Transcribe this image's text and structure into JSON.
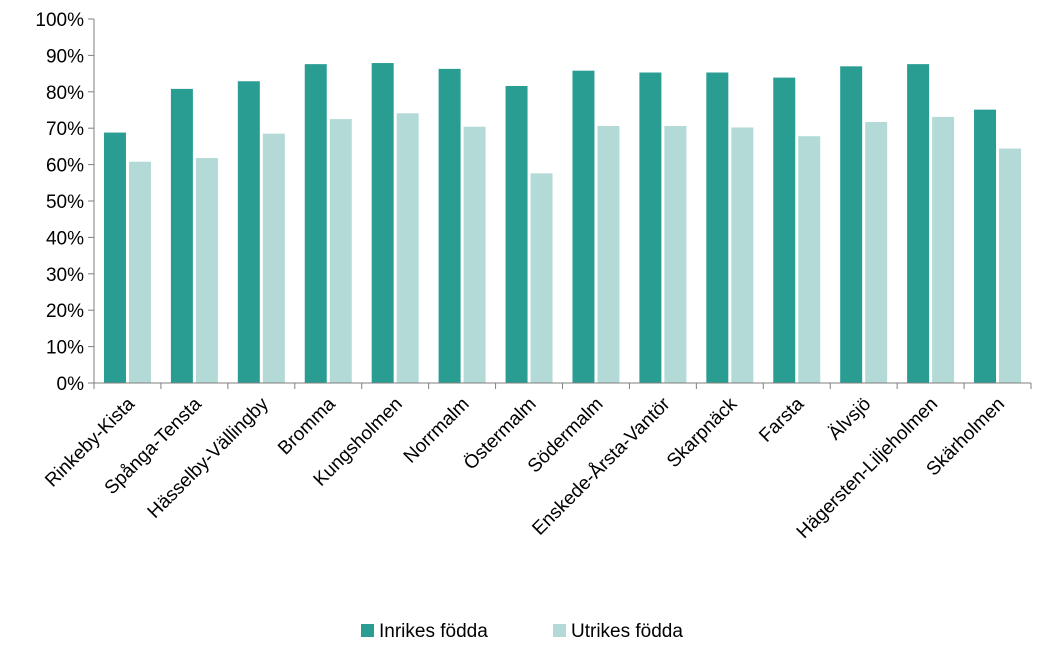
{
  "chart_data": {
    "type": "bar",
    "categories": [
      "Rinkeby-Kista",
      "Spånga-Tensta",
      "Hässelby-Vällingby",
      "Bromma",
      "Kungsholmen",
      "Norrmalm",
      "Östermalm",
      "Södermalm",
      "Enskede-Årsta-Vantör",
      "Skarpnäck",
      "Farsta",
      "Älvsjö",
      "Hägersten-Liljeholmen",
      "Skärholmen"
    ],
    "series": [
      {
        "name": "Inrikes födda",
        "color": "#2a9d93",
        "values": [
          68.8,
          80.8,
          82.9,
          87.6,
          87.9,
          86.3,
          81.6,
          85.8,
          85.3,
          85.3,
          83.9,
          87.0,
          87.6,
          75.1
        ]
      },
      {
        "name": "Utrikes födda",
        "color": "#b3dad6",
        "values": [
          60.8,
          61.8,
          68.5,
          72.5,
          74.1,
          70.4,
          57.6,
          70.6,
          70.6,
          70.2,
          67.8,
          71.7,
          73.1,
          64.4
        ]
      }
    ],
    "y_ticks": [
      "0%",
      "10%",
      "20%",
      "30%",
      "40%",
      "50%",
      "60%",
      "70%",
      "80%",
      "90%",
      "100%"
    ],
    "ylim": [
      0,
      100
    ],
    "xlabel": "",
    "ylabel": "",
    "title": "",
    "grid": false,
    "legend_position": "bottom-center"
  }
}
